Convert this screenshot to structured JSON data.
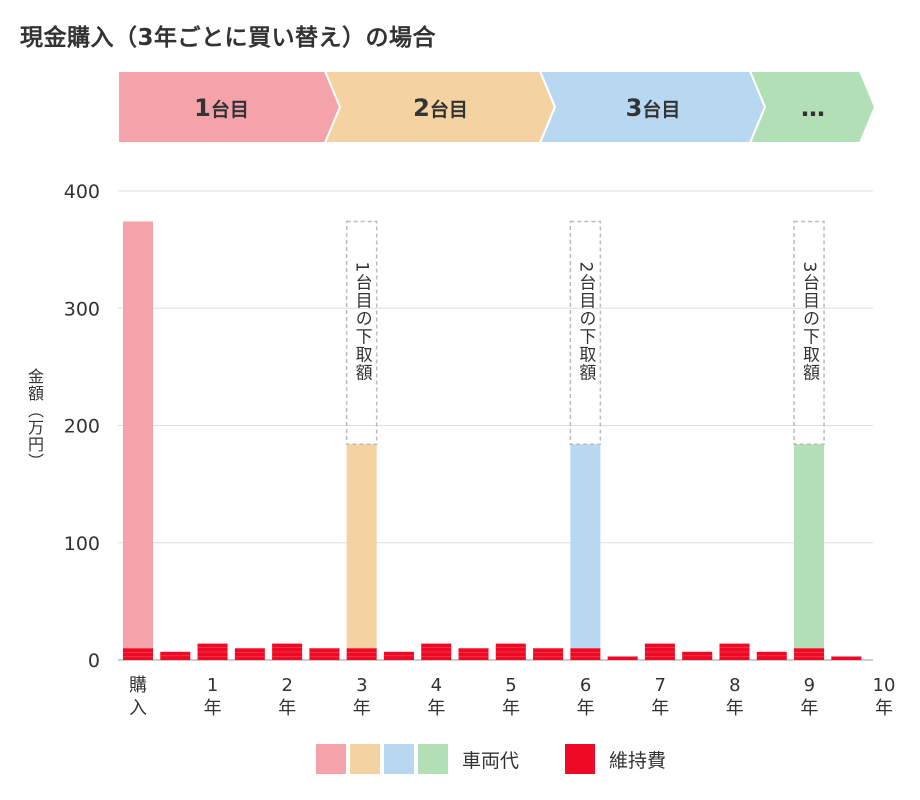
{
  "title": "現金購入（3年ごとに買い替え）の場合",
  "phases": [
    {
      "num": "1",
      "suffix": "台目",
      "color": "#f4a3aa"
    },
    {
      "num": "2",
      "suffix": "台目",
      "color": "#f4d2a2"
    },
    {
      "num": "3",
      "suffix": "台目",
      "color": "#b8d8f2"
    },
    {
      "num": "…",
      "suffix": "",
      "color": "#b2dfb5"
    }
  ],
  "chart_data": {
    "type": "bar",
    "stacked": true,
    "ylabel": "金額（万円）",
    "ylim": [
      0,
      400
    ],
    "yticks": [
      0,
      100,
      200,
      300,
      400
    ],
    "grid": true,
    "xtick_labels": [
      [
        "購",
        "入"
      ],
      [
        "1",
        "年"
      ],
      [
        "2",
        "年"
      ],
      [
        "3",
        "年"
      ],
      [
        "4",
        "年"
      ],
      [
        "5",
        "年"
      ],
      [
        "6",
        "年"
      ],
      [
        "7",
        "年"
      ],
      [
        "8",
        "年"
      ],
      [
        "9",
        "年"
      ],
      [
        "10",
        "年"
      ]
    ],
    "series": [
      {
        "name": "車両代",
        "colors_by_car": [
          "#f4a3aa",
          "#f4d2a2",
          "#b8d8f2",
          "#b2dfb5"
        ],
        "values": [
          364,
          0,
          0,
          0,
          0,
          0,
          174,
          0,
          0,
          0,
          0,
          0,
          174,
          0,
          0,
          0,
          0,
          0,
          174,
          0
        ],
        "car_index": [
          0,
          0,
          0,
          0,
          0,
          0,
          1,
          1,
          1,
          1,
          1,
          1,
          2,
          2,
          2,
          2,
          2,
          2,
          3,
          3
        ]
      },
      {
        "name": "維持費",
        "color": "#ee0a24",
        "values": [
          10,
          7,
          14,
          10,
          14,
          10,
          10,
          7,
          14,
          10,
          14,
          10,
          10,
          3,
          14,
          7,
          14,
          7,
          10,
          3
        ]
      }
    ],
    "annotations": [
      {
        "bar": 6,
        "text": "1台目の下取額",
        "from": 374,
        "to": 184
      },
      {
        "bar": 12,
        "text": "2台目の下取額",
        "from": 374,
        "to": 184
      },
      {
        "bar": 18,
        "text": "3台目の下取額",
        "from": 374,
        "to": 184
      }
    ]
  },
  "legend": {
    "vehicle": "車両代",
    "maintenance": "維持費"
  }
}
